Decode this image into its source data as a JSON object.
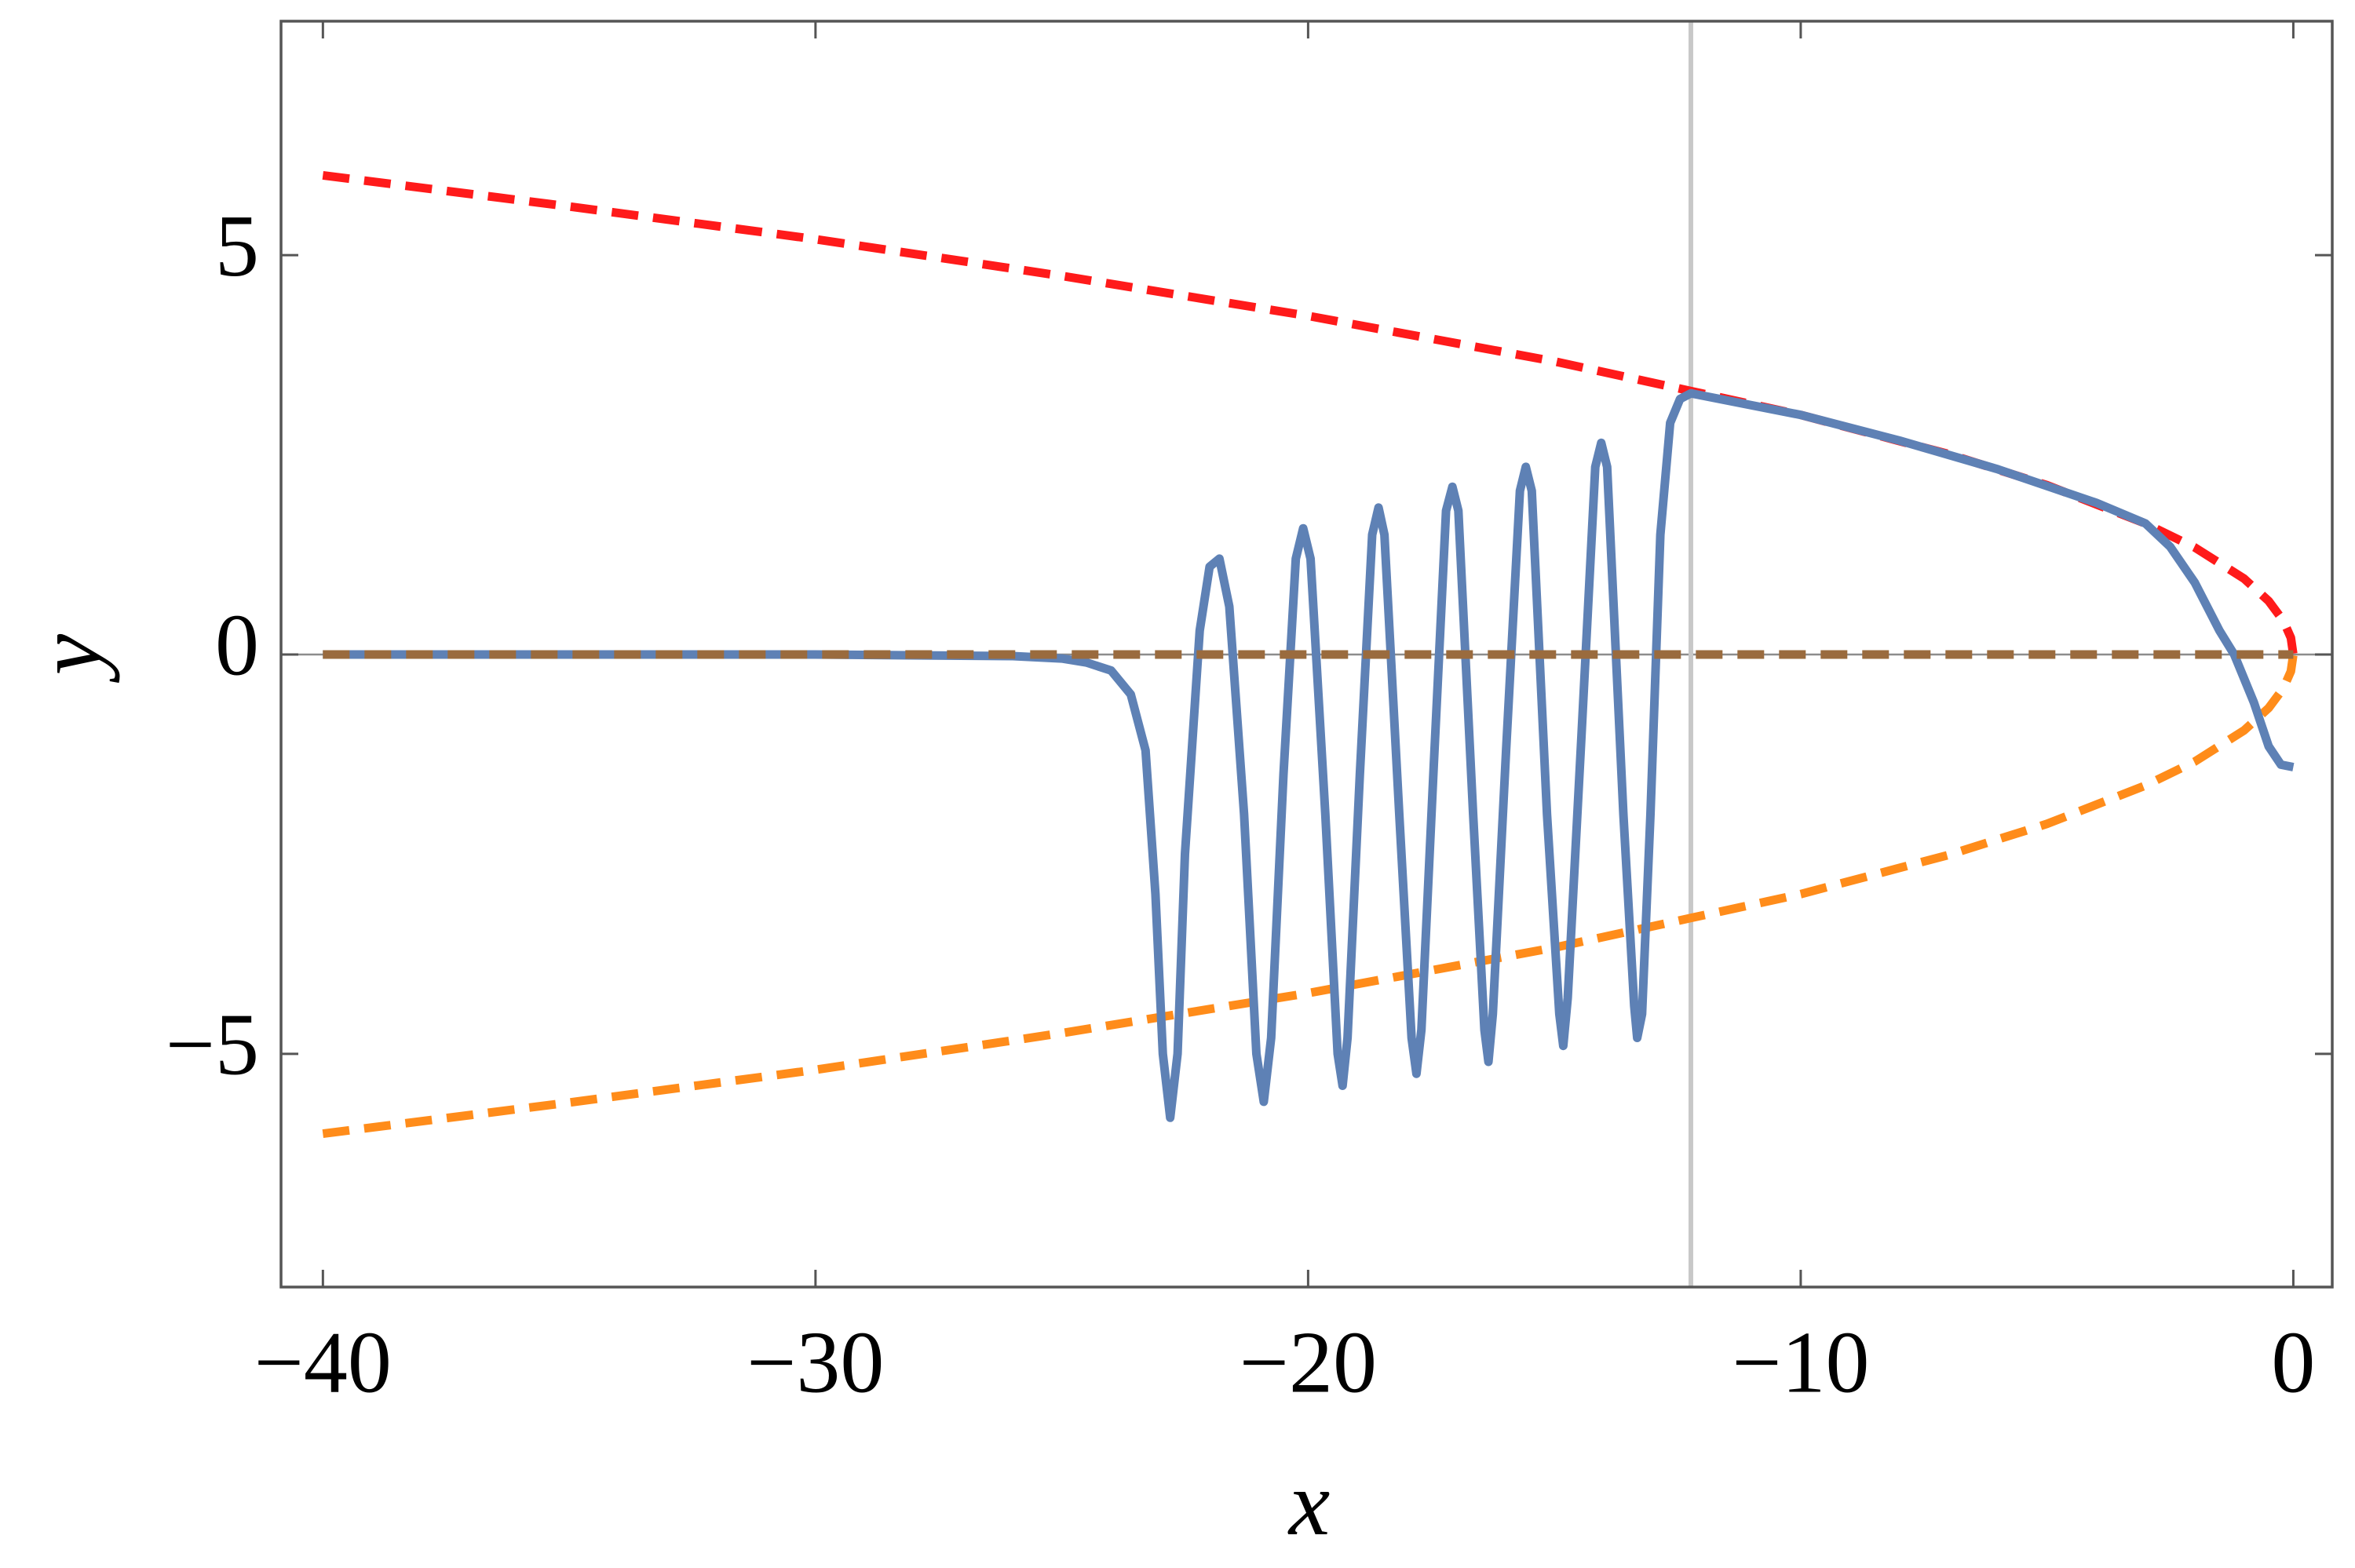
{
  "chart_data": {
    "type": "line",
    "xlabel": "x",
    "ylabel": "y",
    "xlim": [
      -40.85,
      0.79
    ],
    "ylim": [
      -7.92,
      7.93
    ],
    "xticks": [
      {
        "value": -40,
        "label": "−40"
      },
      {
        "value": -30,
        "label": "−30"
      },
      {
        "value": -20,
        "label": "−20"
      },
      {
        "value": -10,
        "label": "−10"
      },
      0
    ],
    "yticks": [
      {
        "value": -5,
        "label": "−5"
      },
      0,
      5
    ],
    "hline": {
      "y": 0,
      "color": "#8c8c8c"
    },
    "vline": {
      "x": -12.23,
      "color": "#c8c8c8"
    },
    "series": [
      {
        "color": "#ff1a1a",
        "dashed": true,
        "x": [
          -40,
          -35,
          -30,
          -25,
          -20,
          -15,
          -10,
          -7,
          -5,
          -3,
          -2,
          -1,
          -0.5,
          -0.2,
          -0.05,
          0
        ],
        "values": [
          6.0,
          5.61,
          5.2,
          4.74,
          4.24,
          3.67,
          3.0,
          2.51,
          2.12,
          1.64,
          1.34,
          0.95,
          0.67,
          0.42,
          0.21,
          0
        ]
      },
      {
        "color": "#ff8c1a",
        "dashed": true,
        "x": [
          -40,
          -35,
          -30,
          -25,
          -20,
          -15,
          -10,
          -7,
          -5,
          -3,
          -2,
          -1,
          -0.5,
          -0.2,
          -0.05,
          0
        ],
        "values": [
          -6.0,
          -5.61,
          -5.2,
          -4.74,
          -4.24,
          -3.67,
          -3.0,
          -2.51,
          -2.12,
          -1.64,
          -1.34,
          -0.95,
          -0.67,
          -0.42,
          -0.21,
          0
        ]
      },
      {
        "color": "#5e81b5",
        "dashed": false,
        "x": [
          -40,
          -30,
          -26,
          -25,
          -24.5,
          -24,
          -23.6,
          -23.3,
          -23.1,
          -22.95,
          -22.8,
          -22.65,
          -22.5,
          -22.2,
          -22.0,
          -21.8,
          -21.6,
          -21.3,
          -21.05,
          -20.9,
          -20.75,
          -20.5,
          -20.25,
          -20.1,
          -19.95,
          -19.65,
          -19.4,
          -19.3,
          -19.2,
          -18.95,
          -18.7,
          -18.57,
          -18.45,
          -18.15,
          -17.9,
          -17.8,
          -17.7,
          -17.45,
          -17.2,
          -17.07,
          -16.95,
          -16.65,
          -16.42,
          -16.34,
          -16.25,
          -15.98,
          -15.7,
          -15.58,
          -15.46,
          -15.15,
          -14.9,
          -14.82,
          -14.73,
          -14.45,
          -14.17,
          -14.05,
          -13.93,
          -13.6,
          -13.38,
          -13.32,
          -13.22,
          -13.05,
          -12.85,
          -12.65,
          -12.45,
          -12.23,
          -10,
          -8,
          -6,
          -4,
          -3,
          -2.5,
          -2,
          -1.5,
          -1.2,
          -0.8,
          -0.5,
          -0.25,
          0
        ],
        "values": [
          0,
          0,
          -0.02,
          -0.05,
          -0.1,
          -0.2,
          -0.5,
          -1.2,
          -3,
          -5,
          -5.8,
          -5,
          -2.5,
          0.3,
          1.1,
          1.2,
          0.6,
          -2,
          -5,
          -5.6,
          -4.8,
          -1.5,
          1.2,
          1.58,
          1.2,
          -2,
          -5,
          -5.4,
          -4.8,
          -1.5,
          1.5,
          1.84,
          1.5,
          -2,
          -4.8,
          -5.25,
          -4.7,
          -1.4,
          1.8,
          2.1,
          1.8,
          -2,
          -4.7,
          -5.1,
          -4.5,
          -1.2,
          2.05,
          2.35,
          2.05,
          -2,
          -4.5,
          -4.9,
          -4.3,
          -1,
          2.35,
          2.65,
          2.35,
          -2,
          -4.4,
          -4.8,
          -4.5,
          -2,
          1.5,
          2.9,
          3.2,
          3.27,
          3.0,
          2.68,
          2.32,
          1.9,
          1.64,
          1.35,
          0.9,
          0.3,
          0,
          -0.6,
          -1.15,
          -1.38,
          -1.41
        ]
      },
      {
        "color": "#9a6b3e",
        "dashed": true,
        "x": [
          -40,
          0
        ],
        "values": [
          0,
          0
        ]
      }
    ]
  }
}
